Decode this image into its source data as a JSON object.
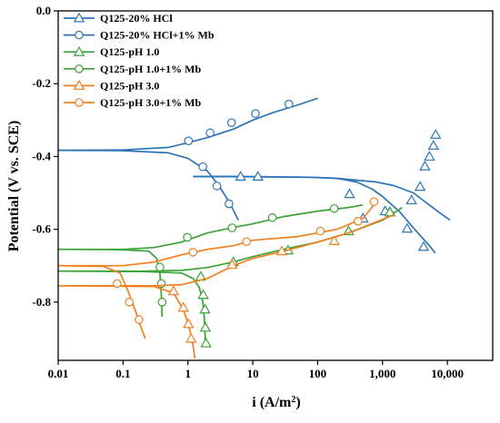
{
  "colors": {
    "blue": "#2e75b6",
    "green": "#3aa335",
    "orange": "#f07f1e"
  },
  "chart_data": {
    "type": "line",
    "xlabel_main": "i (A/m",
    "xlabel_sup": "2",
    "xlabel_close": ")",
    "ylabel": "Potential (V vs. SCE)",
    "x_scale": "log",
    "xlim": [
      0.01,
      50000
    ],
    "ylim": [
      -0.96,
      0.0
    ],
    "x_ticks": [
      0.01,
      0.1,
      1,
      10,
      100,
      1000,
      10000
    ],
    "x_tick_labels": [
      "0.01",
      "0.1",
      "1",
      "10",
      "100",
      "1,000",
      "10,000"
    ],
    "y_ticks": [
      0.0,
      -0.2,
      -0.4,
      -0.6,
      -0.8
    ],
    "y_tick_labels": [
      "0.0",
      "-0.2",
      "-0.4",
      "-0.6",
      "-0.8"
    ],
    "legend_position": "top-left",
    "series": [
      {
        "name": "Q125-20% HCl",
        "color": "blue",
        "marker": "triangle",
        "anodic": [
          [
            1.2,
            -0.455
          ],
          [
            5,
            -0.455
          ],
          [
            20,
            -0.456
          ],
          [
            80,
            -0.457
          ],
          [
            200,
            -0.46
          ],
          [
            400,
            -0.465
          ],
          [
            800,
            -0.47
          ],
          [
            1500,
            -0.48
          ],
          [
            3000,
            -0.5
          ],
          [
            7000,
            -0.55
          ],
          [
            11000,
            -0.575
          ]
        ],
        "cathodic": [
          [
            1.2,
            -0.455
          ],
          [
            5,
            -0.455
          ],
          [
            20,
            -0.456
          ],
          [
            80,
            -0.457
          ],
          [
            200,
            -0.46
          ],
          [
            400,
            -0.47
          ],
          [
            700,
            -0.49
          ],
          [
            1000,
            -0.51
          ],
          [
            1800,
            -0.55
          ],
          [
            2500,
            -0.58
          ],
          [
            3500,
            -0.61
          ],
          [
            5000,
            -0.64
          ],
          [
            6500,
            -0.665
          ]
        ],
        "markers": [
          [
            6.5,
            -0.455
          ],
          [
            12,
            -0.455
          ],
          [
            310,
            -0.503
          ],
          [
            1300,
            -0.553
          ],
          [
            2400,
            -0.598
          ],
          [
            4300,
            -0.648
          ],
          [
            500,
            -0.57
          ],
          [
            1100,
            -0.55
          ],
          [
            2800,
            -0.52
          ],
          [
            3800,
            -0.483
          ],
          [
            4500,
            -0.427
          ],
          [
            5300,
            -0.4
          ],
          [
            6100,
            -0.37
          ],
          [
            6600,
            -0.34
          ]
        ]
      },
      {
        "name": "Q125-20% HCl+1% Mb",
        "color": "blue",
        "marker": "circle",
        "anodic": [
          [
            0.01,
            -0.383
          ],
          [
            0.1,
            -0.382
          ],
          [
            0.5,
            -0.375
          ],
          [
            1,
            -0.362
          ],
          [
            2,
            -0.348
          ],
          [
            5,
            -0.325
          ],
          [
            10,
            -0.3
          ],
          [
            20,
            -0.28
          ],
          [
            50,
            -0.258
          ],
          [
            100,
            -0.24
          ]
        ],
        "cathodic": [
          [
            0.01,
            -0.383
          ],
          [
            0.1,
            -0.384
          ],
          [
            0.5,
            -0.39
          ],
          [
            1,
            -0.405
          ],
          [
            2,
            -0.44
          ],
          [
            3,
            -0.48
          ],
          [
            4.5,
            -0.53
          ],
          [
            6,
            -0.575
          ]
        ],
        "markers": [
          [
            1.02,
            -0.357
          ],
          [
            2.2,
            -0.335
          ],
          [
            4.7,
            -0.307
          ],
          [
            11,
            -0.282
          ],
          [
            36,
            -0.256
          ],
          [
            1.7,
            -0.428
          ],
          [
            2.8,
            -0.481
          ],
          [
            4.3,
            -0.53
          ]
        ]
      },
      {
        "name": "Q125-pH 1.0",
        "color": "green",
        "marker": "triangle",
        "anodic": [
          [
            0.01,
            -0.715
          ],
          [
            0.2,
            -0.715
          ],
          [
            0.8,
            -0.713
          ],
          [
            2,
            -0.705
          ],
          [
            5,
            -0.69
          ],
          [
            10,
            -0.675
          ],
          [
            30,
            -0.655
          ],
          [
            100,
            -0.635
          ],
          [
            300,
            -0.61
          ],
          [
            1000,
            -0.575
          ],
          [
            1500,
            -0.555
          ],
          [
            2000,
            -0.54
          ]
        ],
        "cathodic": [
          [
            0.01,
            -0.715
          ],
          [
            0.2,
            -0.716
          ],
          [
            0.8,
            -0.72
          ],
          [
            1.2,
            -0.735
          ],
          [
            1.5,
            -0.76
          ],
          [
            1.7,
            -0.8
          ],
          [
            1.8,
            -0.85
          ],
          [
            1.85,
            -0.9
          ],
          [
            1.9,
            -0.92
          ]
        ],
        "markers": [
          [
            1.58,
            -0.73
          ],
          [
            1.72,
            -0.78
          ],
          [
            1.83,
            -0.82
          ],
          [
            1.86,
            -0.87
          ],
          [
            1.9,
            -0.913
          ],
          [
            5,
            -0.69
          ],
          [
            35,
            -0.658
          ],
          [
            300,
            -0.605
          ],
          [
            1300,
            -0.553
          ]
        ]
      },
      {
        "name": "Q125-pH 1.0+1% Mb",
        "color": "green",
        "marker": "circle",
        "anodic": [
          [
            0.01,
            -0.655
          ],
          [
            0.1,
            -0.655
          ],
          [
            0.3,
            -0.65
          ],
          [
            0.8,
            -0.635
          ],
          [
            2,
            -0.61
          ],
          [
            5,
            -0.595
          ],
          [
            10,
            -0.585
          ],
          [
            30,
            -0.565
          ],
          [
            100,
            -0.55
          ],
          [
            300,
            -0.54
          ],
          [
            500,
            -0.533
          ]
        ],
        "cathodic": [
          [
            0.01,
            -0.655
          ],
          [
            0.1,
            -0.656
          ],
          [
            0.25,
            -0.66
          ],
          [
            0.33,
            -0.68
          ],
          [
            0.37,
            -0.72
          ],
          [
            0.39,
            -0.78
          ],
          [
            0.4,
            -0.84
          ]
        ],
        "markers": [
          [
            0.98,
            -0.622
          ],
          [
            4.8,
            -0.596
          ],
          [
            20,
            -0.568
          ],
          [
            180,
            -0.543
          ],
          [
            0.37,
            -0.704
          ],
          [
            0.39,
            -0.749
          ],
          [
            0.4,
            -0.8
          ]
        ]
      },
      {
        "name": "Q125-pH 3.0",
        "color": "orange",
        "marker": "triangle",
        "anodic": [
          [
            0.01,
            -0.755
          ],
          [
            0.3,
            -0.755
          ],
          [
            0.8,
            -0.752
          ],
          [
            2,
            -0.735
          ],
          [
            5,
            -0.7
          ],
          [
            10,
            -0.68
          ],
          [
            30,
            -0.66
          ],
          [
            100,
            -0.635
          ],
          [
            300,
            -0.61
          ],
          [
            800,
            -0.58
          ],
          [
            1500,
            -0.56
          ]
        ],
        "cathodic": [
          [
            0.01,
            -0.755
          ],
          [
            0.3,
            -0.757
          ],
          [
            0.6,
            -0.775
          ],
          [
            0.85,
            -0.82
          ],
          [
            1.05,
            -0.87
          ],
          [
            1.2,
            -0.92
          ],
          [
            1.28,
            -0.955
          ]
        ],
        "markers": [
          [
            0.6,
            -0.77
          ],
          [
            0.85,
            -0.815
          ],
          [
            1.02,
            -0.86
          ],
          [
            1.12,
            -0.9
          ],
          [
            4.8,
            -0.697
          ],
          [
            28,
            -0.66
          ],
          [
            180,
            -0.632
          ]
        ]
      },
      {
        "name": "Q125-pH 3.0+1% Mb",
        "color": "orange",
        "marker": "circle",
        "anodic": [
          [
            0.01,
            -0.7
          ],
          [
            0.1,
            -0.7
          ],
          [
            0.3,
            -0.69
          ],
          [
            0.8,
            -0.67
          ],
          [
            2,
            -0.655
          ],
          [
            5,
            -0.645
          ],
          [
            10,
            -0.63
          ],
          [
            50,
            -0.62
          ],
          [
            200,
            -0.6
          ],
          [
            500,
            -0.57
          ],
          [
            800,
            -0.525
          ]
        ],
        "cathodic": [
          [
            0.01,
            -0.7
          ],
          [
            0.05,
            -0.702
          ],
          [
            0.09,
            -0.72
          ],
          [
            0.12,
            -0.77
          ],
          [
            0.16,
            -0.83
          ],
          [
            0.19,
            -0.87
          ],
          [
            0.22,
            -0.9
          ]
        ],
        "markers": [
          [
            0.081,
            -0.749
          ],
          [
            0.125,
            -0.8
          ],
          [
            0.176,
            -0.848
          ],
          [
            1.2,
            -0.663
          ],
          [
            8,
            -0.634
          ],
          [
            110,
            -0.605
          ],
          [
            420,
            -0.578
          ],
          [
            740,
            -0.524
          ]
        ]
      }
    ]
  }
}
